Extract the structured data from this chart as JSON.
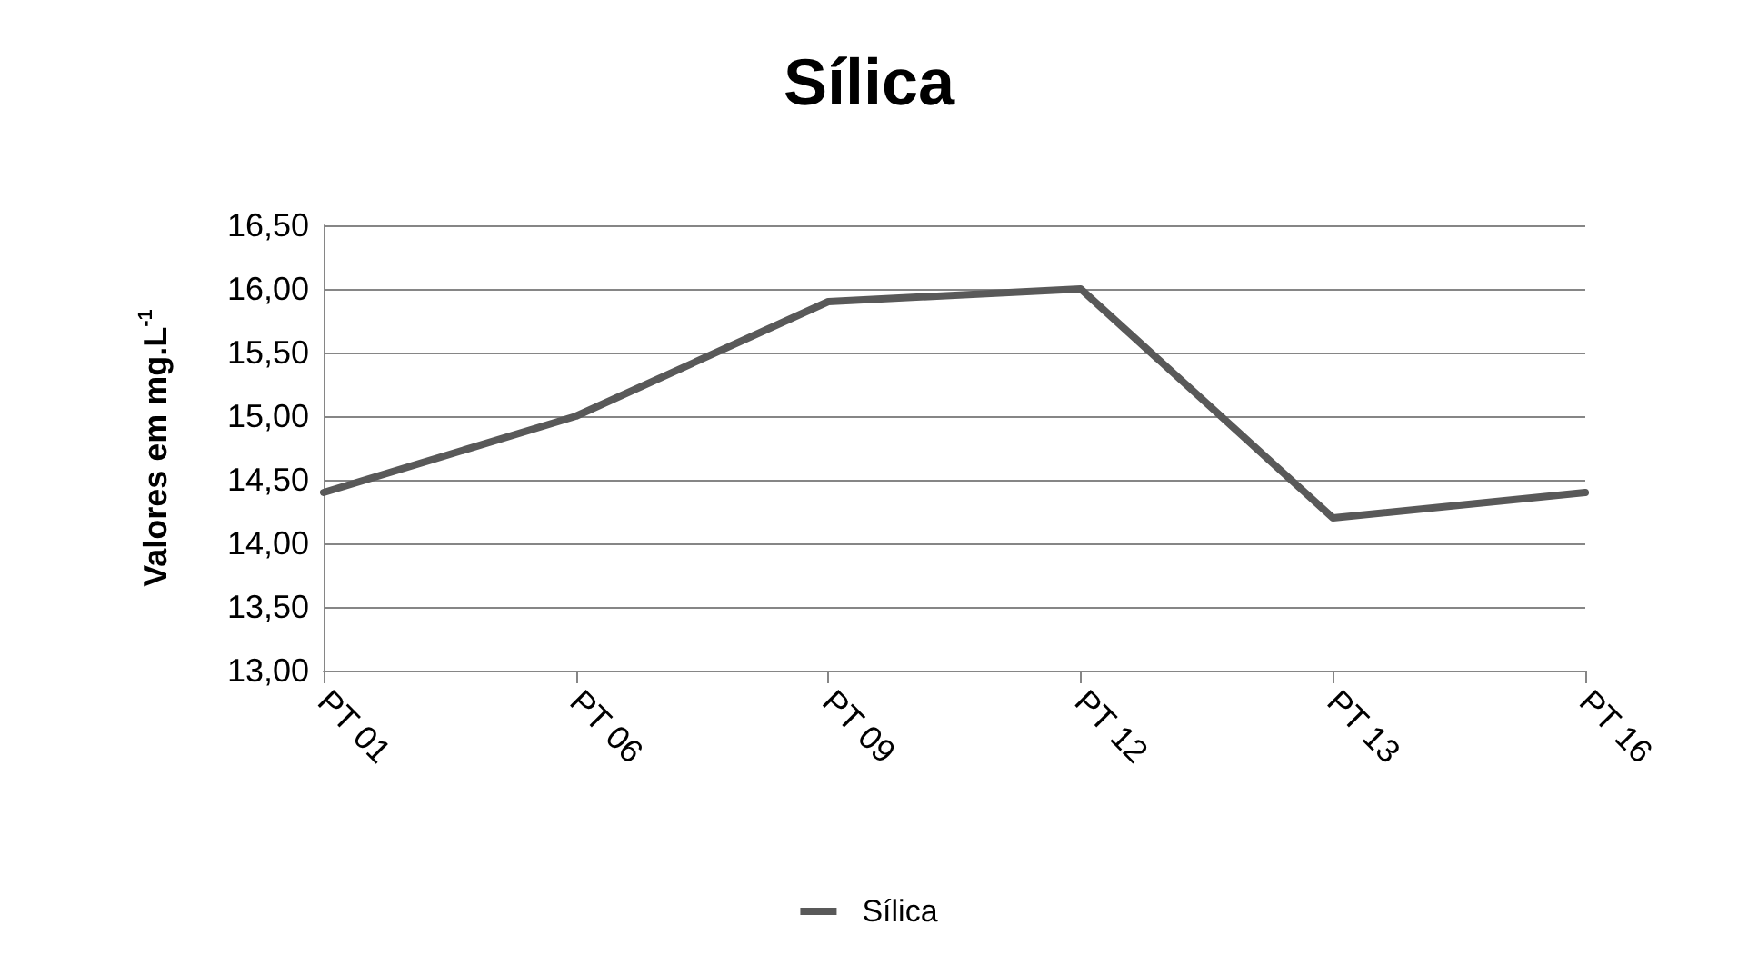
{
  "chart_data": {
    "type": "line",
    "title": "Sílica",
    "ylabel": "Valores em mg.L$^{-1}$",
    "categories": [
      "PT 01",
      "PT 06",
      "PT 09",
      "PT 12",
      "PT 13",
      "PT 16"
    ],
    "series": [
      {
        "name": "Sílica",
        "color": "#595959",
        "values": [
          14.4,
          15.0,
          15.9,
          16.0,
          14.2,
          14.4
        ]
      }
    ],
    "ylim": [
      13,
      16.5
    ],
    "yticks": [
      {
        "value": 13,
        "label": "13,00"
      },
      {
        "value": 13.5,
        "label": "13,50"
      },
      {
        "value": 14,
        "label": "14,00"
      },
      {
        "value": 14.5,
        "label": "14,50"
      },
      {
        "value": 15,
        "label": "15,00"
      },
      {
        "value": 15.5,
        "label": "15,50"
      },
      {
        "value": 16,
        "label": "16,00"
      },
      {
        "value": 16.5,
        "label": "16,50"
      }
    ],
    "grid": "y",
    "legend": "bottom",
    "marker": "none",
    "line_style": "solid"
  }
}
